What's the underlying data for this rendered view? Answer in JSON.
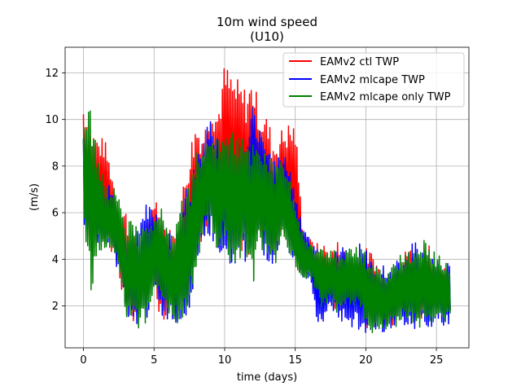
{
  "chart_data": {
    "type": "line",
    "title": "10m wind speed",
    "subtitle": "(U10)",
    "xlabel": "time (days)",
    "ylabel": "(m/s)",
    "xlim": [
      -1.3,
      27.3
    ],
    "ylim": [
      0.2,
      13.1
    ],
    "xticks": [
      0,
      5,
      10,
      15,
      20,
      25
    ],
    "yticks": [
      2,
      4,
      6,
      8,
      10,
      12
    ],
    "grid": true,
    "legend_position": "top-right",
    "series": [
      {
        "name": "EAMv2 ctl TWP",
        "color": "#ff0000",
        "envelope": {
          "days": [
            0,
            0.5,
            1,
            1.5,
            2,
            2.5,
            3,
            3.5,
            4,
            4.5,
            5,
            5.5,
            6,
            6.5,
            7,
            7.5,
            8,
            8.5,
            9,
            9.5,
            10,
            10.5,
            11,
            11.5,
            12,
            12.5,
            13,
            13.5,
            14,
            14.5,
            15,
            15.5,
            16,
            16.5,
            17,
            17.5,
            18,
            18.5,
            19,
            19.5,
            20,
            20.5,
            21,
            21.5,
            22,
            22.5,
            23,
            23.5,
            24,
            24.5,
            25,
            25.5,
            26
          ],
          "low": [
            5.8,
            4.2,
            4.6,
            4.9,
            4.3,
            3.5,
            1.3,
            1.0,
            1.6,
            2.0,
            2.6,
            1.3,
            1.6,
            2.0,
            1.4,
            1.9,
            3.6,
            4.9,
            5.2,
            4.4,
            4.5,
            4.6,
            4.0,
            4.0,
            4.5,
            4.8,
            4.2,
            3.2,
            4.8,
            4.3,
            3.6,
            3.3,
            3.4,
            1.9,
            1.8,
            2.5,
            1.4,
            2.0,
            2.1,
            2.1,
            0.9,
            1.2,
            1.3,
            0.9,
            1.2,
            1.5,
            1.4,
            1.2,
            1.3,
            1.4,
            2.2,
            2.4,
            1.8
          ],
          "high": [
            10.8,
            9.8,
            9.3,
            9.2,
            7.9,
            6.3,
            6.2,
            5.0,
            4.8,
            5.4,
            7.0,
            6.2,
            5.4,
            5.1,
            7.0,
            8.9,
            10.1,
            9.4,
            11.0,
            10.5,
            12.5,
            12.0,
            11.7,
            11.4,
            11.9,
            10.5,
            10.2,
            9.2,
            9.6,
            9.9,
            10.0,
            5.6,
            4.9,
            4.7,
            4.7,
            4.3,
            4.8,
            4.4,
            3.8,
            4.2,
            4.5,
            4.3,
            3.6,
            3.4,
            3.9,
            3.9,
            4.7,
            4.1,
            4.3,
            4.8,
            3.3,
            3.8,
            2.3
          ]
        }
      },
      {
        "name": "EAMv2 mlcape TWP",
        "color": "#0000ff",
        "envelope": {
          "days": [
            0,
            0.5,
            1,
            1.5,
            2,
            2.5,
            3,
            3.5,
            4,
            4.5,
            5,
            5.5,
            6,
            6.5,
            7,
            7.5,
            8,
            8.5,
            9,
            9.5,
            10,
            10.5,
            11,
            11.5,
            12,
            12.5,
            13,
            13.5,
            14,
            14.5,
            15,
            15.5,
            16,
            16.5,
            17,
            17.5,
            18,
            18.5,
            19,
            19.5,
            20,
            20.5,
            21,
            21.5,
            22,
            22.5,
            23,
            23.5,
            24,
            24.5,
            25,
            25.5,
            26
          ],
          "low": [
            5.6,
            4.6,
            4.5,
            4.3,
            4.2,
            3.4,
            1.4,
            1.1,
            1.1,
            1.0,
            2.6,
            1.4,
            1.4,
            1.3,
            1.2,
            1.8,
            3.6,
            5.0,
            5.0,
            4.3,
            4.2,
            3.4,
            4.0,
            3.9,
            4.2,
            4.4,
            4.0,
            3.2,
            4.8,
            4.4,
            3.6,
            3.2,
            3.1,
            1.3,
            1.2,
            2.0,
            1.3,
            1.3,
            1.1,
            1.0,
            0.8,
            0.9,
            0.9,
            0.8,
            1.0,
            1.2,
            1.0,
            1.0,
            1.2,
            0.9,
            1.4,
            1.1,
            1.2
          ],
          "high": [
            9.6,
            8.6,
            7.6,
            7.2,
            7.3,
            6.0,
            5.6,
            5.6,
            5.4,
            6.6,
            6.3,
            5.8,
            5.1,
            5.2,
            6.5,
            7.3,
            8.4,
            9.0,
            10.3,
            9.2,
            9.2,
            9.1,
            9.3,
            8.9,
            10.6,
            9.8,
            8.8,
            8.5,
            8.6,
            8.5,
            6.8,
            5.7,
            5.0,
            4.6,
            4.3,
            4.0,
            4.5,
            4.6,
            4.4,
            4.8,
            4.4,
            4.0,
            3.7,
            3.8,
            4.1,
            4.1,
            4.5,
            4.8,
            4.6,
            4.3,
            4.0,
            4.0,
            3.9
          ]
        }
      },
      {
        "name": "EAMv2 mlcape only TWP",
        "color": "#008000",
        "envelope": {
          "days": [
            0,
            0.5,
            1,
            1.5,
            2,
            2.5,
            3,
            3.5,
            4,
            4.5,
            5,
            5.5,
            6,
            6.5,
            7,
            7.5,
            8,
            8.5,
            9,
            9.5,
            10,
            10.5,
            11,
            11.5,
            12,
            12.5,
            13,
            13.5,
            14,
            14.5,
            15,
            15.5,
            16,
            16.5,
            17,
            17.5,
            18,
            18.5,
            19,
            19.5,
            20,
            20.5,
            21,
            21.5,
            22,
            22.5,
            23,
            23.5,
            24,
            24.5,
            25,
            25.5,
            26
          ],
          "low": [
            5.6,
            2.1,
            4.3,
            4.4,
            4.1,
            3.4,
            1.3,
            1.2,
            1.0,
            1.2,
            2.8,
            1.6,
            1.4,
            1.2,
            1.4,
            1.8,
            3.6,
            5.0,
            5.0,
            4.3,
            4.5,
            3.6,
            4.0,
            3.9,
            2.8,
            4.5,
            4.1,
            3.2,
            4.8,
            4.4,
            3.6,
            3.1,
            3.2,
            2.6,
            1.6,
            2.4,
            1.4,
            2.0,
            1.9,
            2.0,
            0.8,
            0.8,
            1.0,
            0.8,
            1.0,
            1.2,
            1.3,
            1.0,
            1.1,
            0.8,
            1.4,
            1.1,
            1.2
          ],
          "high": [
            9.6,
            10.7,
            8.6,
            7.1,
            7.2,
            7.0,
            5.5,
            6.0,
            5.3,
            5.4,
            5.6,
            6.2,
            5.2,
            5.2,
            6.8,
            7.1,
            8.9,
            8.8,
            9.6,
            9.0,
            10.0,
            9.4,
            9.5,
            9.2,
            9.4,
            9.2,
            8.7,
            8.2,
            8.4,
            8.0,
            6.2,
            5.1,
            4.8,
            4.4,
            4.5,
            4.4,
            4.5,
            4.3,
            4.6,
            4.5,
            4.4,
            3.8,
            3.7,
            3.6,
            4.0,
            4.2,
            4.4,
            4.3,
            4.9,
            4.7,
            4.3,
            4.0,
            3.9
          ]
        }
      }
    ]
  }
}
